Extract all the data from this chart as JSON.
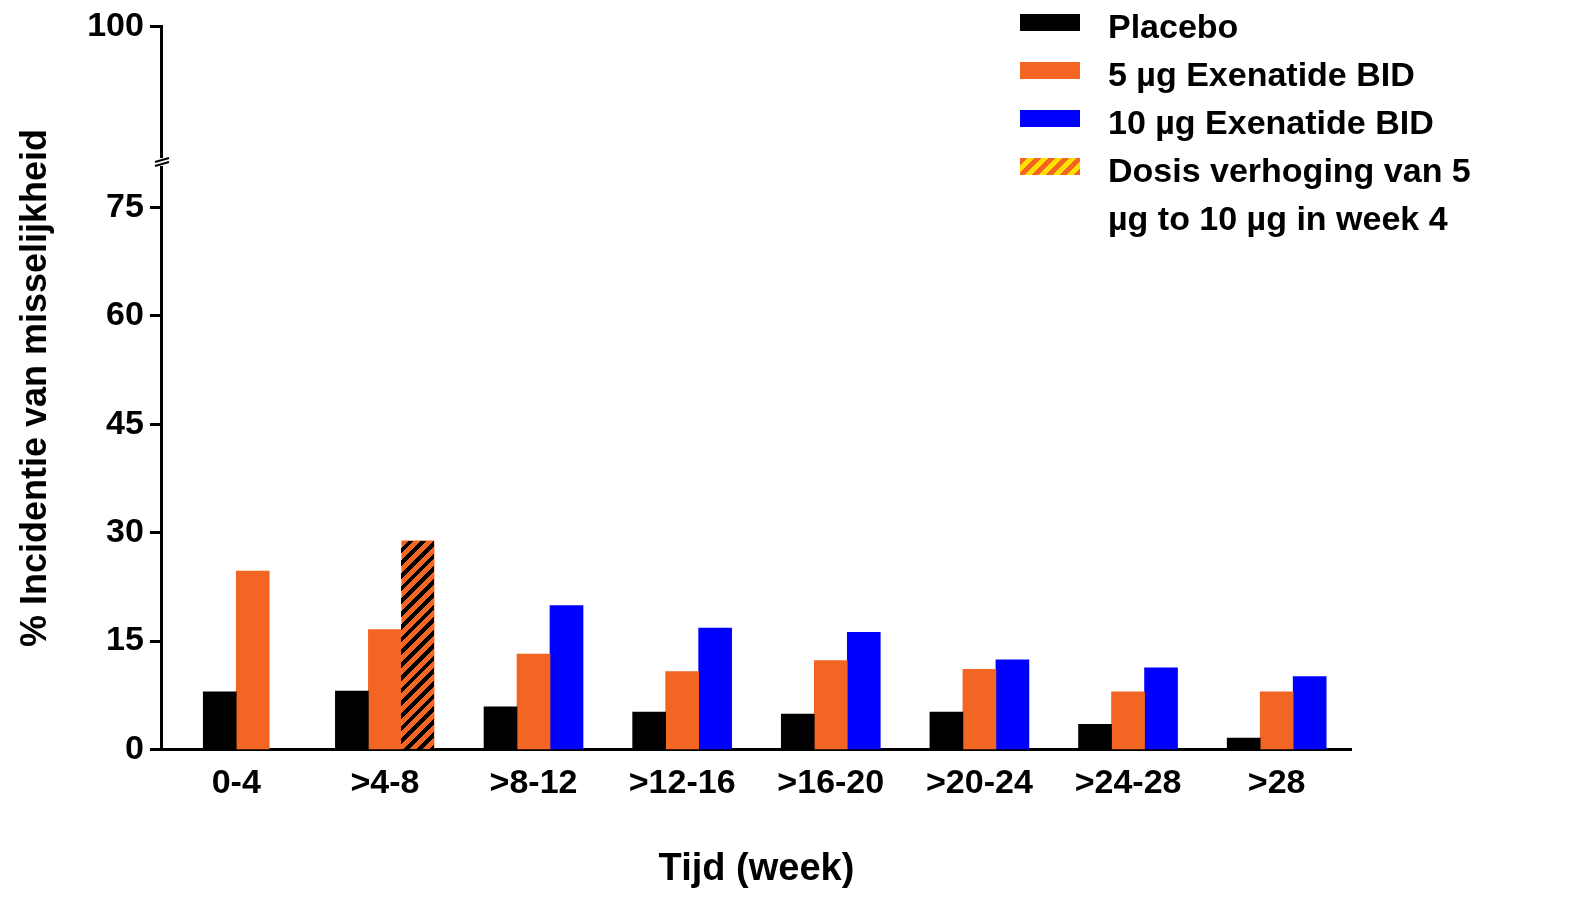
{
  "chart_data": {
    "type": "bar",
    "xlabel": "Tijd (week)",
    "ylabel": "% Incidentie van misselijkheid",
    "categories": [
      "0-4",
      ">4-8",
      ">8-12",
      ">12-16",
      ">16-20",
      ">20-24",
      ">24-28",
      ">28"
    ],
    "series": [
      {
        "name": "Placebo",
        "color": "#000000",
        "values": [
          8.0,
          8.1,
          5.9,
          5.2,
          4.9,
          5.2,
          3.5,
          1.6
        ]
      },
      {
        "name": "5 µg Exenatide BID",
        "color": "#f26522",
        "values": [
          24.7,
          16.6,
          13.2,
          10.8,
          12.3,
          11.1,
          8.0,
          8.0
        ]
      },
      {
        "name": "10 µg Exenatide BID",
        "color": "#0000ff",
        "values": [
          null,
          null,
          19.9,
          16.8,
          16.2,
          12.4,
          11.3,
          10.1
        ]
      },
      {
        "name": "Dosis verhoging van 5 µg to 10 µg in week 4",
        "color": "#f26522",
        "values": [
          null,
          28.9,
          null,
          null,
          null,
          null,
          null,
          null
        ]
      }
    ],
    "ylim": [
      0,
      100
    ],
    "yticks": [
      0,
      15,
      30,
      45,
      60,
      75,
      100
    ],
    "grid": false,
    "legend": "top right"
  }
}
